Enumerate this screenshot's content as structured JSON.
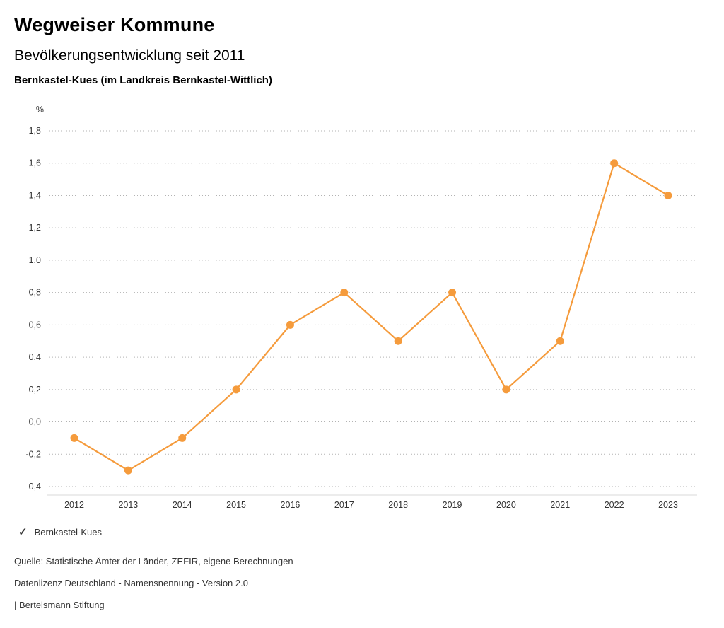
{
  "header": {
    "title": "Wegweiser Kommune",
    "subtitle": "Bevölkerungsentwicklung seit 2011",
    "region": "Bernkastel-Kues (im Landkreis Bernkastel-Wittlich)"
  },
  "chart_data": {
    "type": "line",
    "title": "Bevölkerungsentwicklung seit 2011",
    "unit_label": "%",
    "categories": [
      "2012",
      "2013",
      "2014",
      "2015",
      "2016",
      "2017",
      "2018",
      "2019",
      "2020",
      "2021",
      "2022",
      "2023"
    ],
    "series": [
      {
        "name": "Bernkastel-Kues",
        "values": [
          -0.1,
          -0.3,
          -0.1,
          0.2,
          0.6,
          0.8,
          0.5,
          0.8,
          0.2,
          0.5,
          1.6,
          1.4
        ]
      }
    ],
    "ylim": [
      -0.4,
      1.8
    ],
    "ytick_step": 0.2,
    "ytick_labels": [
      "-0,4",
      "-0,2",
      "0,0",
      "0,2",
      "0,4",
      "0,6",
      "0,8",
      "1,0",
      "1,2",
      "1,4",
      "1,6",
      "1,8"
    ],
    "grid": true,
    "legend_position": "bottom",
    "colors": {
      "line": "#f59b3c",
      "point": "#f59b3c",
      "grid": "#b3b3b3",
      "axis": "#d8d8d8",
      "tick_text": "#333333"
    }
  },
  "legend": {
    "check_icon": "✓",
    "label": "Bernkastel-Kues"
  },
  "footer": {
    "source": "Quelle: Statistische Ämter der Länder, ZEFIR, eigene Berechnungen",
    "license": "Datenlizenz Deutschland - Namensnennung - Version 2.0",
    "attribution": "| Bertelsmann Stiftung"
  }
}
